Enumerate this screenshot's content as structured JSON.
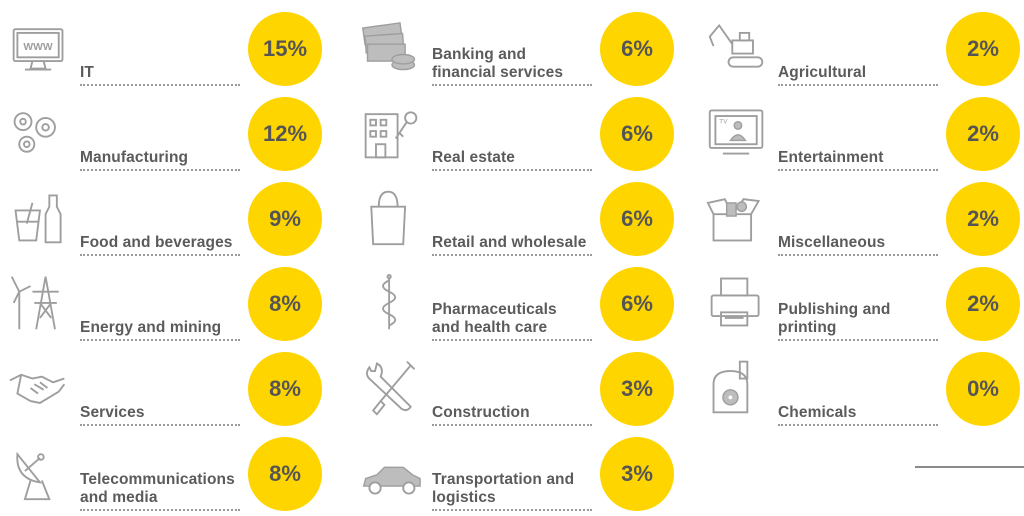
{
  "chart_data": {
    "type": "table",
    "columns": [
      [
        {
          "label_lines": [
            "IT"
          ],
          "value": "15%",
          "icon": "monitor-www-icon"
        },
        {
          "label_lines": [
            "Manufacturing"
          ],
          "value": "12%",
          "icon": "gears-icon"
        },
        {
          "label_lines": [
            "Food and beverages"
          ],
          "value": "9%",
          "icon": "glass-bottle-icon"
        },
        {
          "label_lines": [
            "Energy and mining"
          ],
          "value": "8%",
          "icon": "wind-turbine-pylon-icon"
        },
        {
          "label_lines": [
            "Services"
          ],
          "value": "8%",
          "icon": "handshake-icon"
        },
        {
          "label_lines": [
            "Telecommunications",
            "and media"
          ],
          "value": "8%",
          "icon": "satellite-dish-icon"
        }
      ],
      [
        {
          "label_lines": [
            "Banking and",
            "financial services"
          ],
          "value": "6%",
          "icon": "money-coins-icon"
        },
        {
          "label_lines": [
            "Real estate"
          ],
          "value": "6%",
          "icon": "building-key-icon"
        },
        {
          "label_lines": [
            "Retail and wholesale"
          ],
          "value": "6%",
          "icon": "shopping-bag-icon"
        },
        {
          "label_lines": [
            "Pharmaceuticals",
            "and health care"
          ],
          "value": "6%",
          "icon": "caduceus-icon"
        },
        {
          "label_lines": [
            "Construction"
          ],
          "value": "3%",
          "icon": "wrench-screwdriver-icon"
        },
        {
          "label_lines": [
            "Transportation and",
            "logistics"
          ],
          "value": "3%",
          "icon": "car-icon"
        }
      ],
      [
        {
          "label_lines": [
            "Agricultural"
          ],
          "value": "2%",
          "icon": "excavator-icon"
        },
        {
          "label_lines": [
            "Entertainment"
          ],
          "value": "2%",
          "icon": "tv-icon"
        },
        {
          "label_lines": [
            "Miscellaneous"
          ],
          "value": "2%",
          "icon": "open-box-icon"
        },
        {
          "label_lines": [
            "Publishing and",
            "printing"
          ],
          "value": "2%",
          "icon": "printer-icon"
        },
        {
          "label_lines": [
            "Chemicals"
          ],
          "value": "0%",
          "icon": "radiation-plant-icon"
        }
      ]
    ]
  },
  "colors": {
    "bubble": "#ffd500",
    "bubble_text": "#555555",
    "label_text": "#5b5b5b",
    "icon_stroke": "#9e9e9e"
  }
}
